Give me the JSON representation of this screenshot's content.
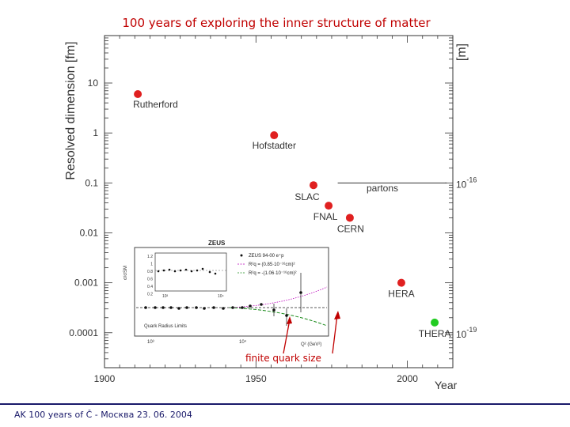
{
  "title": "100 years of exploring the inner structure of matter",
  "footer": "AK 100 years of Č - Москва 23. 06. 2004",
  "colors": {
    "red": "#e02020",
    "green": "#22cc22",
    "title": "#c00000",
    "annotation": "#c00000",
    "navy": "#1a1a6a"
  },
  "chart_data": {
    "type": "scatter",
    "ylabel": "Resolved dimension [fm]",
    "right_axis_label": "[m]",
    "xlabel": "Year",
    "xlim": [
      1900,
      2015
    ],
    "ylim_log": [
      -4.7,
      1.95
    ],
    "x_ticks": [
      1900,
      1950,
      2000
    ],
    "y_ticks": [
      {
        "value": 10,
        "label": "10"
      },
      {
        "value": 1,
        "label": "1"
      },
      {
        "value": 0.1,
        "label": "0.1"
      },
      {
        "value": 0.01,
        "label": "0.01"
      },
      {
        "value": 0.001,
        "label": "0.001"
      },
      {
        "value": 0.0001,
        "label": "0.0001"
      }
    ],
    "right_ticks": [
      {
        "value": 0.1,
        "base": "10",
        "exp": "-16"
      },
      {
        "value": 0.0001,
        "base": "10",
        "exp": "-19"
      }
    ],
    "points": [
      {
        "label": "Rutherford",
        "x": 1911,
        "y": 6,
        "color": "red"
      },
      {
        "label": "Hofstadter",
        "x": 1956,
        "y": 0.9,
        "color": "red"
      },
      {
        "label": "SLAC",
        "x": 1969,
        "y": 0.09,
        "color": "red"
      },
      {
        "label": "FNAL",
        "x": 1974,
        "y": 0.035,
        "color": "red"
      },
      {
        "label": "CERN",
        "x": 1981,
        "y": 0.02,
        "color": "red"
      },
      {
        "label": "HERA",
        "x": 1998,
        "y": 0.001,
        "color": "red"
      },
      {
        "label": "THERA",
        "x": 2009,
        "y": 0.00016,
        "color": "green"
      }
    ],
    "partons_label": "partons",
    "partons_line": {
      "x_start": 1977,
      "x_end": 2013,
      "y": 0.1
    },
    "annotation": "finite quark size",
    "inset": {
      "title": "ZEUS",
      "legend": [
        "ZEUS 94-00 e⁺p",
        "R²q = (0.85·10⁻¹⁶cm)²",
        "R²q = -(1.06·10⁻¹⁶cm)²"
      ],
      "quark_radius_label": "Quark Radius Limits",
      "x_axis_label": "Q² (GeV²)",
      "x_tick_labels": [
        "10³",
        "10⁴"
      ],
      "y_label": "σ/σSM",
      "y_tick_labels": [
        "1.2",
        "1",
        "0.8",
        "0.6",
        "0.4",
        "0.2"
      ],
      "subplot_x_ticks": [
        "10³",
        "10⁴"
      ]
    }
  }
}
